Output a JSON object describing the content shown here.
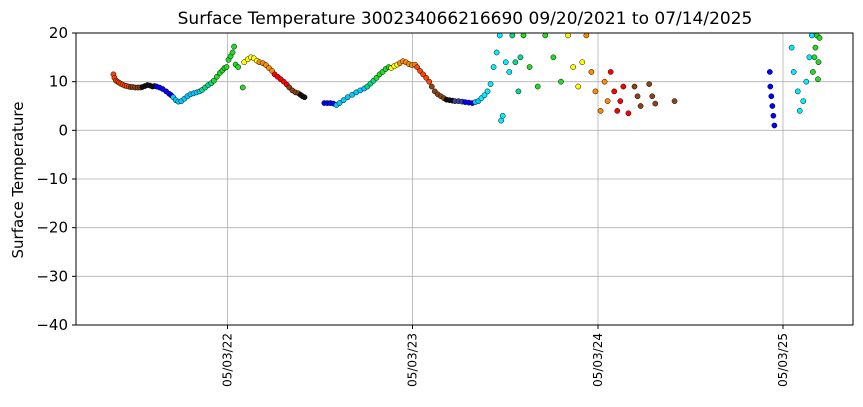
{
  "chart_data": {
    "type": "scatter",
    "title": "Surface Temperature 300234066216690  09/20/2021 to 07/14/2025",
    "xlabel": "",
    "ylabel": "Surface Temperature",
    "x_range": [
      "2021-09-20",
      "2025-07-14"
    ],
    "ylim": [
      -40,
      20
    ],
    "yticks": [
      20,
      10,
      0,
      -10,
      -20,
      -30,
      -40
    ],
    "xticks": [
      {
        "date": "2022-05-03",
        "label": "05/03/22"
      },
      {
        "date": "2023-05-03",
        "label": "05/03/23"
      },
      {
        "date": "2024-05-03",
        "label": "05/03/24"
      },
      {
        "date": "2025-05-03",
        "label": "05/03/25"
      }
    ],
    "grid": true,
    "legend": "none",
    "color_cycle": [
      "#ff0000",
      "#ff7f00",
      "#ffff00",
      "#22dd22",
      "#00eeff",
      "#0000ff",
      "#1f1f1f",
      "#8b4513",
      "#1e90ff",
      "#ff4500"
    ],
    "series": [
      {
        "color": "#ff4500",
        "points": [
          [
            "2021-09-20",
            11.5
          ],
          [
            "2021-09-22",
            10.8
          ],
          [
            "2021-09-25",
            10.2
          ],
          [
            "2021-09-28",
            10.0
          ],
          [
            "2021-10-01",
            9.8
          ],
          [
            "2021-10-04",
            9.6
          ],
          [
            "2021-10-08",
            9.4
          ],
          [
            "2021-10-12",
            9.2
          ],
          [
            "2021-10-16",
            9.1
          ],
          [
            "2021-10-20",
            9.0
          ]
        ]
      },
      {
        "color": "#8b4513",
        "points": [
          [
            "2021-10-24",
            8.9
          ],
          [
            "2021-10-28",
            8.9
          ],
          [
            "2021-11-02",
            8.8
          ],
          [
            "2021-11-07",
            8.8
          ],
          [
            "2021-11-12",
            8.8
          ]
        ]
      },
      {
        "color": "#111111",
        "points": [
          [
            "2021-11-16",
            8.9
          ],
          [
            "2021-11-21",
            9.1
          ],
          [
            "2021-11-26",
            9.3
          ],
          [
            "2021-12-01",
            9.2
          ],
          [
            "2021-12-06",
            9.0
          ],
          [
            "2021-12-10",
            9.1
          ]
        ]
      },
      {
        "color": "#0000ff",
        "points": [
          [
            "2021-12-14",
            9.0
          ],
          [
            "2021-12-20",
            8.8
          ],
          [
            "2021-12-26",
            8.5
          ],
          [
            "2022-01-02",
            8.0
          ],
          [
            "2022-01-08",
            7.5
          ],
          [
            "2022-01-12",
            7.2
          ]
        ]
      },
      {
        "color": "#00ccff",
        "points": [
          [
            "2022-01-16",
            6.8
          ],
          [
            "2022-01-21",
            6.2
          ],
          [
            "2022-01-26",
            5.9
          ],
          [
            "2022-02-01",
            6.0
          ],
          [
            "2022-02-07",
            6.5
          ],
          [
            "2022-02-13",
            7.0
          ],
          [
            "2022-02-19",
            7.4
          ],
          [
            "2022-02-25",
            7.6
          ],
          [
            "2022-03-03",
            7.8
          ],
          [
            "2022-03-09",
            8.0
          ]
        ]
      },
      {
        "color": "#00dd88",
        "points": [
          [
            "2022-03-14",
            8.3
          ],
          [
            "2022-03-20",
            8.8
          ],
          [
            "2022-03-26",
            9.3
          ],
          [
            "2022-04-01",
            9.7
          ]
        ]
      },
      {
        "color": "#22dd22",
        "points": [
          [
            "2022-04-06",
            10.2
          ],
          [
            "2022-04-12",
            11.0
          ],
          [
            "2022-04-18",
            11.8
          ],
          [
            "2022-04-23",
            12.3
          ],
          [
            "2022-04-27",
            12.8
          ],
          [
            "2022-05-01",
            13.0
          ],
          [
            "2022-05-05",
            14.5
          ],
          [
            "2022-05-09",
            15.2
          ],
          [
            "2022-05-13",
            16.0
          ],
          [
            "2022-05-16",
            17.2
          ],
          [
            "2022-05-19",
            13.5
          ],
          [
            "2022-05-24",
            13.0
          ],
          [
            "2022-06-02",
            8.8
          ]
        ]
      },
      {
        "color": "#ffff00",
        "points": [
          [
            "2022-06-05",
            14.0
          ],
          [
            "2022-06-12",
            14.6
          ],
          [
            "2022-06-18",
            15.0
          ],
          [
            "2022-06-24",
            14.8
          ],
          [
            "2022-06-30",
            14.3
          ]
        ]
      },
      {
        "color": "#ff8c00",
        "points": [
          [
            "2022-07-05",
            14.0
          ],
          [
            "2022-07-12",
            13.8
          ],
          [
            "2022-07-18",
            13.4
          ],
          [
            "2022-07-24",
            12.8
          ],
          [
            "2022-07-30",
            12.2
          ]
        ]
      },
      {
        "color": "#ff0000",
        "points": [
          [
            "2022-08-04",
            11.5
          ],
          [
            "2022-08-10",
            11.0
          ],
          [
            "2022-08-16",
            10.5
          ],
          [
            "2022-08-22",
            10.0
          ],
          [
            "2022-08-28",
            9.4
          ]
        ]
      },
      {
        "color": "#8b4513",
        "points": [
          [
            "2022-09-02",
            8.8
          ],
          [
            "2022-09-08",
            8.2
          ],
          [
            "2022-09-14",
            7.8
          ],
          [
            "2022-09-20",
            7.6
          ]
        ]
      },
      {
        "color": "#111111",
        "points": [
          [
            "2022-09-24",
            7.3
          ],
          [
            "2022-09-28",
            7.0
          ],
          [
            "2022-10-02",
            6.8
          ]
        ]
      },
      {
        "color": "#0000ff",
        "points": [
          [
            "2022-11-10",
            5.6
          ],
          [
            "2022-11-16",
            5.6
          ],
          [
            "2022-11-22",
            5.6
          ],
          [
            "2022-11-28",
            5.5
          ]
        ]
      },
      {
        "color": "#00ccff",
        "points": [
          [
            "2022-12-04",
            5.2
          ],
          [
            "2022-12-10",
            5.6
          ],
          [
            "2022-12-18",
            6.2
          ],
          [
            "2022-12-26",
            6.8
          ],
          [
            "2023-01-04",
            7.3
          ],
          [
            "2023-01-12",
            7.8
          ],
          [
            "2023-01-20",
            8.2
          ],
          [
            "2023-01-28",
            8.6
          ]
        ]
      },
      {
        "color": "#00dd88",
        "points": [
          [
            "2023-02-03",
            9.0
          ],
          [
            "2023-02-09",
            9.6
          ],
          [
            "2023-02-15",
            10.2
          ]
        ]
      },
      {
        "color": "#22dd22",
        "points": [
          [
            "2023-02-21",
            10.8
          ],
          [
            "2023-02-27",
            11.5
          ],
          [
            "2023-03-05",
            12.0
          ],
          [
            "2023-03-11",
            12.6
          ],
          [
            "2023-03-17",
            13.0
          ]
        ]
      },
      {
        "color": "#ffff00",
        "points": [
          [
            "2023-03-22",
            12.8
          ],
          [
            "2023-03-28",
            13.2
          ],
          [
            "2023-04-03",
            13.5
          ]
        ]
      },
      {
        "color": "#ff8c00",
        "points": [
          [
            "2023-04-08",
            13.8
          ],
          [
            "2023-04-14",
            14.2
          ],
          [
            "2023-04-20",
            14.0
          ],
          [
            "2023-04-26",
            13.6
          ],
          [
            "2023-05-02",
            13.4
          ],
          [
            "2023-05-08",
            13.5
          ]
        ]
      },
      {
        "color": "#ff4500",
        "points": [
          [
            "2023-05-12",
            13.0
          ],
          [
            "2023-05-18",
            12.2
          ],
          [
            "2023-05-24",
            11.5
          ],
          [
            "2023-05-30",
            10.8
          ],
          [
            "2023-06-05",
            10.0
          ]
        ]
      },
      {
        "color": "#8b4513",
        "points": [
          [
            "2023-06-10",
            9.0
          ],
          [
            "2023-06-16",
            8.0
          ],
          [
            "2023-06-22",
            7.4
          ],
          [
            "2023-06-28",
            7.0
          ],
          [
            "2023-07-04",
            6.6
          ]
        ]
      },
      {
        "color": "#111111",
        "points": [
          [
            "2023-07-09",
            6.3
          ],
          [
            "2023-07-15",
            6.2
          ],
          [
            "2023-07-21",
            6.1
          ]
        ]
      },
      {
        "color": "#3f3f9f",
        "points": [
          [
            "2023-07-26",
            6.0
          ],
          [
            "2023-08-02",
            6.0
          ],
          [
            "2023-08-09",
            5.9
          ]
        ]
      },
      {
        "color": "#0000ff",
        "points": [
          [
            "2023-08-15",
            5.8
          ],
          [
            "2023-08-22",
            5.7
          ],
          [
            "2023-08-29",
            5.6
          ]
        ]
      },
      {
        "color": "#00ccff",
        "points": [
          [
            "2023-09-04",
            5.8
          ],
          [
            "2023-09-10",
            6.0
          ]
        ]
      },
      {
        "color": "#00eeff",
        "points": [
          [
            "2023-09-16",
            6.6
          ],
          [
            "2023-09-22",
            7.2
          ],
          [
            "2023-09-28",
            8.0
          ],
          [
            "2023-10-04",
            9.5
          ],
          [
            "2023-10-10",
            13.0
          ],
          [
            "2023-10-16",
            16.0
          ],
          [
            "2023-10-22",
            19.5
          ],
          [
            "2023-10-25",
            2.0
          ],
          [
            "2023-10-28",
            3.0
          ],
          [
            "2023-11-03",
            14.0
          ],
          [
            "2023-11-10",
            12.0
          ]
        ]
      },
      {
        "color": "#00dd88",
        "points": [
          [
            "2023-11-16",
            19.5
          ],
          [
            "2023-11-22",
            14.0
          ],
          [
            "2023-11-28",
            8.0
          ],
          [
            "2023-12-02",
            15.0
          ]
        ]
      },
      {
        "color": "#22dd22",
        "points": [
          [
            "2023-12-08",
            19.5
          ],
          [
            "2023-12-20",
            13.0
          ],
          [
            "2024-01-05",
            9.0
          ],
          [
            "2024-01-20",
            19.5
          ],
          [
            "2024-02-05",
            15.0
          ],
          [
            "2024-02-20",
            10.0
          ]
        ]
      },
      {
        "color": "#ffff00",
        "points": [
          [
            "2024-03-05",
            19.5
          ],
          [
            "2024-03-15",
            13.0
          ],
          [
            "2024-03-25",
            9.0
          ],
          [
            "2024-04-02",
            14.0
          ]
        ]
      },
      {
        "color": "#ff8c00",
        "points": [
          [
            "2024-04-10",
            19.5
          ],
          [
            "2024-04-20",
            12.0
          ],
          [
            "2024-04-28",
            8.0
          ],
          [
            "2024-05-08",
            4.0
          ],
          [
            "2024-05-16",
            10.0
          ],
          [
            "2024-05-22",
            6.0
          ]
        ]
      },
      {
        "color": "#ff0000",
        "points": [
          [
            "2024-05-28",
            12.0
          ],
          [
            "2024-06-04",
            8.0
          ],
          [
            "2024-06-10",
            4.0
          ],
          [
            "2024-06-16",
            6.0
          ],
          [
            "2024-06-22",
            9.0
          ],
          [
            "2024-07-02",
            3.5
          ]
        ]
      },
      {
        "color": "#8b4513",
        "points": [
          [
            "2024-07-14",
            9.0
          ],
          [
            "2024-07-20",
            7.0
          ],
          [
            "2024-07-26",
            5.0
          ],
          [
            "2024-08-12",
            9.5
          ],
          [
            "2024-08-18",
            7.0
          ],
          [
            "2024-08-24",
            5.5
          ],
          [
            "2024-10-01",
            6.0
          ]
        ]
      },
      {
        "color": "#0000ff",
        "points": [
          [
            "2025-04-07",
            12.0
          ],
          [
            "2025-04-08",
            9.0
          ],
          [
            "2025-04-10",
            7.0
          ],
          [
            "2025-04-12",
            5.0
          ],
          [
            "2025-04-14",
            3.0
          ],
          [
            "2025-04-16",
            1.0
          ]
        ]
      },
      {
        "color": "#00eeff",
        "points": [
          [
            "2025-05-20",
            17.0
          ],
          [
            "2025-05-24",
            12.0
          ],
          [
            "2025-06-01",
            8.0
          ],
          [
            "2025-06-05",
            4.0
          ],
          [
            "2025-06-12",
            6.0
          ],
          [
            "2025-06-18",
            10.0
          ],
          [
            "2025-06-24",
            15.0
          ],
          [
            "2025-06-29",
            19.5
          ]
        ]
      },
      {
        "color": "#22dd22",
        "points": [
          [
            "2025-07-01",
            12.0
          ],
          [
            "2025-07-04",
            15.0
          ],
          [
            "2025-07-06",
            17.0
          ],
          [
            "2025-07-09",
            19.5
          ],
          [
            "2025-07-11",
            10.5
          ],
          [
            "2025-07-12",
            14.0
          ],
          [
            "2025-07-14",
            19.0
          ]
        ]
      }
    ]
  }
}
